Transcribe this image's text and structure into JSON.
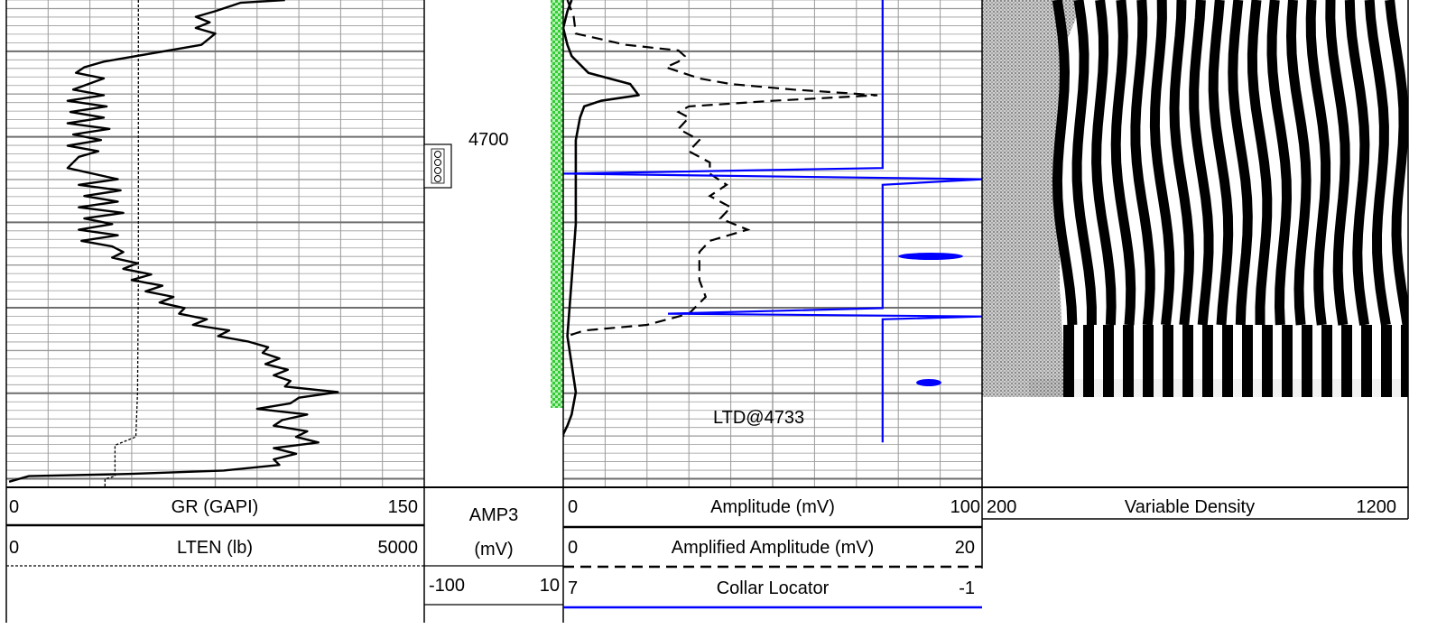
{
  "chart_data": {
    "type": "well-log",
    "depth": {
      "range": [
        4650,
        4737
      ],
      "labeled_depth": "4700",
      "annotation": "LTD@4733"
    },
    "tracks": [
      {
        "id": "track1",
        "curves": [
          {
            "name": "GR (GAPI)",
            "min": "0",
            "max": "150",
            "min_v": 0,
            "max_v": 150,
            "style": "solid",
            "color": "#000000",
            "points": [
              [
                4650,
                100
              ],
              [
                4650.5,
                84
              ],
              [
                4652,
                75
              ],
              [
                4653,
                68
              ],
              [
                4654,
                73
              ],
              [
                4655,
                68
              ],
              [
                4656,
                75
              ],
              [
                4658,
                70
              ],
              [
                4661,
                35
              ],
              [
                4662,
                28
              ],
              [
                4663,
                25
              ],
              [
                4664,
                35
              ],
              [
                4666,
                24
              ],
              [
                4667,
                35
              ],
              [
                4668,
                22
              ],
              [
                4669,
                36
              ],
              [
                4670,
                23
              ],
              [
                4671,
                35
              ],
              [
                4672,
                22
              ],
              [
                4673,
                37
              ],
              [
                4674,
                24
              ],
              [
                4675,
                34
              ],
              [
                4676,
                22
              ],
              [
                4677,
                33
              ],
              [
                4678,
                26
              ],
              [
                4680,
                22
              ],
              [
                4682,
                40
              ],
              [
                4683,
                26
              ],
              [
                4684,
                41
              ],
              [
                4685,
                28
              ],
              [
                4686,
                40
              ],
              [
                4687,
                26
              ],
              [
                4688,
                42
              ],
              [
                4689,
                28
              ],
              [
                4690,
                38
              ],
              [
                4691,
                26
              ],
              [
                4692,
                40
              ],
              [
                4693,
                27
              ],
              [
                4694,
                38
              ],
              [
                4695,
                42
              ],
              [
                4696,
                38
              ],
              [
                4697,
                47
              ],
              [
                4698,
                42
              ],
              [
                4699,
                52
              ],
              [
                4700,
                45
              ],
              [
                4701,
                56
              ],
              [
                4702,
                50
              ],
              [
                4703,
                60
              ],
              [
                4704,
                55
              ],
              [
                4705,
                64
              ],
              [
                4706,
                62
              ],
              [
                4707,
                72
              ],
              [
                4708,
                67
              ],
              [
                4709,
                80
              ],
              [
                4710,
                76
              ],
              [
                4711,
                87
              ],
              [
                4712,
                94
              ],
              [
                4713,
                92
              ],
              [
                4714,
                98
              ],
              [
                4715,
                93
              ],
              [
                4716,
                101
              ],
              [
                4717,
                96
              ],
              [
                4718,
                102
              ],
              [
                4719,
                100
              ],
              [
                4720,
                119
              ],
              [
                4721,
                105
              ],
              [
                4722,
                102
              ],
              [
                4723,
                90
              ],
              [
                4724,
                108
              ],
              [
                4725,
                99
              ],
              [
                4726,
                96
              ],
              [
                4727,
                108
              ],
              [
                4728,
                104
              ],
              [
                4729,
                112
              ],
              [
                4730,
                96
              ],
              [
                4731,
                104
              ],
              [
                4732,
                96
              ],
              [
                4733,
                98
              ],
              [
                4734,
                78
              ],
              [
                4734.6,
                45
              ],
              [
                4735,
                8
              ],
              [
                4736,
                1
              ]
            ]
          },
          {
            "name": "LTEN (lb)",
            "min": "0",
            "max": "5000",
            "min_v": 0,
            "max_v": 5000,
            "style": "dashed",
            "color": "#000000",
            "points": [
              [
                4650,
                1580
              ],
              [
                4660,
                1580
              ],
              [
                4680,
                1580
              ],
              [
                4700,
                1580
              ],
              [
                4720,
                1570
              ],
              [
                4728,
                1550
              ],
              [
                4729.5,
                1300
              ],
              [
                4735,
                1300
              ],
              [
                4735.5,
                1180
              ],
              [
                4737,
                1180
              ]
            ]
          }
        ]
      },
      {
        "id": "depth-track",
        "symbol": "oooo",
        "curves": [
          {
            "name": "AMP3",
            "unit": "(mV)",
            "min": "-100",
            "max": "10"
          }
        ]
      },
      {
        "id": "track2",
        "curves": [
          {
            "name": "Amplitude (mV)",
            "min": "0",
            "max": "100",
            "min_v": 0,
            "max_v": 100,
            "style": "solid",
            "color": "#000000",
            "points": [
              [
                4650,
                2
              ],
              [
                4652,
                1
              ],
              [
                4655,
                0
              ],
              [
                4658,
                1
              ],
              [
                4660,
                2
              ],
              [
                4663,
                6
              ],
              [
                4665,
                16
              ],
              [
                4667,
                18
              ],
              [
                4668,
                9
              ],
              [
                4669,
                5
              ],
              [
                4671,
                4
              ],
              [
                4675,
                3
              ],
              [
                4680,
                3
              ],
              [
                4690,
                3
              ],
              [
                4700,
                2
              ],
              [
                4710,
                1
              ],
              [
                4720,
                3
              ],
              [
                4724,
                2
              ],
              [
                4726,
                1
              ],
              [
                4727.5,
                0
              ],
              [
                4728,
                0
              ]
            ]
          },
          {
            "name": "Amplified Amplitude (mV)",
            "min": "0",
            "max": "20",
            "min_v": 0,
            "max_v": 20,
            "style": "dashed",
            "color": "#000000",
            "points": [
              [
                4650,
                0.2
              ],
              [
                4653,
                0.5
              ],
              [
                4656,
                0.6
              ],
              [
                4658,
                3
              ],
              [
                4659,
                5.5
              ],
              [
                4660,
                5.8
              ],
              [
                4661,
                5.5
              ],
              [
                4662,
                4.9
              ],
              [
                4664,
                6.5
              ],
              [
                4665,
                8
              ],
              [
                4666,
                11
              ],
              [
                4666.5,
                13
              ],
              [
                4667,
                15
              ],
              [
                4668,
                10
              ],
              [
                4669,
                6
              ],
              [
                4670,
                5.5
              ],
              [
                4671,
                6
              ],
              [
                4673,
                5.5
              ],
              [
                4675,
                6.5
              ],
              [
                4677,
                6
              ],
              [
                4679,
                7
              ],
              [
                4681,
                7
              ],
              [
                4683,
                7.8
              ],
              [
                4685,
                7
              ],
              [
                4687,
                8
              ],
              [
                4689,
                7.5
              ],
              [
                4691,
                8.8
              ],
              [
                4693,
                7
              ],
              [
                4695,
                6.5
              ],
              [
                4697,
                6.5
              ],
              [
                4700,
                6.5
              ],
              [
                4703,
                6.8
              ],
              [
                4706,
                6
              ],
              [
                4708,
                4
              ],
              [
                4709,
                1
              ],
              [
                4710,
                0.2
              ]
            ]
          },
          {
            "name": "Collar Locator",
            "min": "7",
            "max": "-1",
            "min_v": 7,
            "max_v": -1,
            "style": "solid",
            "color": "#0000ff",
            "points": [
              [
                4650,
                0.9
              ],
              [
                4680,
                0.9
              ],
              [
                4681,
                7
              ],
              [
                4682,
                -1
              ],
              [
                4683,
                0.9
              ],
              [
                4705,
                0.9
              ],
              [
                4706,
                5
              ],
              [
                4706.5,
                -1
              ],
              [
                4707,
                0.9
              ],
              [
                4729,
                0.9
              ]
            ]
          }
        ],
        "fill": {
          "color": "#33cc33"
        }
      },
      {
        "id": "track3",
        "curves": [
          {
            "name": "Variable Density",
            "min": "200",
            "max": "1200",
            "style": "image"
          }
        ]
      }
    ],
    "grid": true,
    "colors": {
      "grid": "#9a9a9a",
      "major_grid": "#6e6e6e",
      "collar": "#0000ff",
      "fill": "#33cc33"
    }
  }
}
